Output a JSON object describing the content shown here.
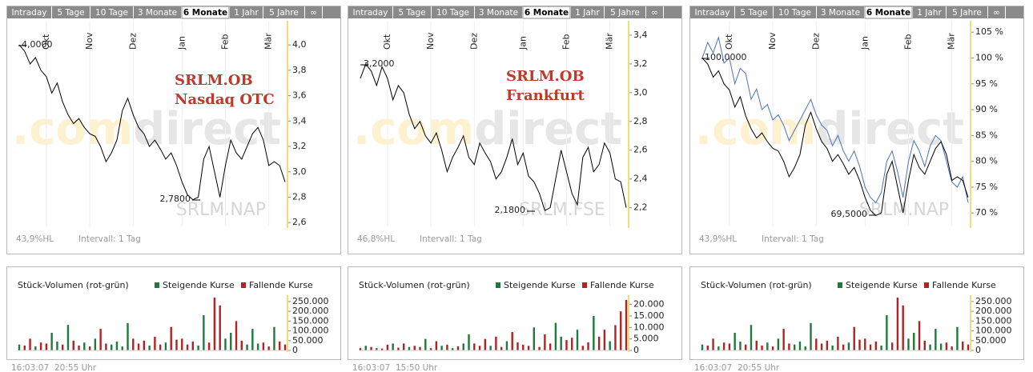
{
  "tabs": [
    "Intraday",
    "5 Tage",
    "10 Tage",
    "3 Monate",
    "6 Monate",
    "1 Jahr",
    "5 Jahre",
    "∞"
  ],
  "active_tab": "6 Monate",
  "chart_data": [
    {
      "type": "line",
      "title": "SRLM.OB",
      "subtitle": "Nasdaq OTC",
      "categories": [
        null,
        null,
        null,
        null,
        null,
        "Okt",
        null,
        null,
        null,
        null,
        null,
        null,
        null,
        "Nov",
        null,
        null,
        null,
        null,
        null,
        null,
        null,
        "Dez",
        null,
        null,
        null,
        null,
        null,
        null,
        null,
        null,
        "Jan",
        null,
        null,
        null,
        null,
        null,
        null,
        null,
        "Feb",
        null,
        null,
        null,
        null,
        null,
        null,
        null,
        "Mär",
        null,
        null,
        null
      ],
      "series": [
        {
          "color": "#000000",
          "values": [
            4.0,
            3.95,
            3.85,
            3.9,
            3.8,
            3.75,
            3.62,
            3.7,
            3.55,
            3.45,
            3.38,
            3.42,
            3.35,
            3.3,
            3.28,
            3.2,
            3.08,
            3.15,
            3.25,
            3.48,
            3.58,
            3.45,
            3.35,
            3.3,
            3.2,
            3.25,
            3.18,
            3.1,
            3.15,
            3.05,
            2.92,
            2.82,
            2.78,
            2.8,
            3.1,
            3.2,
            3.0,
            2.8,
            3.05,
            3.25,
            3.15,
            3.1,
            3.2,
            3.3,
            3.35,
            3.25,
            3.05,
            3.08,
            3.05,
            2.92
          ]
        }
      ],
      "ylim": [
        2.57,
        4.19
      ],
      "yticks": [
        {
          "value": 2.6,
          "label": "2,6"
        },
        {
          "value": 2.8,
          "label": "2,8"
        },
        {
          "value": 3.0,
          "label": "3,0"
        },
        {
          "value": 3.2,
          "label": "3,2"
        },
        {
          "value": 3.4,
          "label": "3,4"
        },
        {
          "value": 3.6,
          "label": "3,6"
        },
        {
          "value": 3.8,
          "label": "3,8"
        },
        {
          "value": 4.0,
          "label": "4,0"
        }
      ],
      "annotations": [
        "4,0000",
        "2,7800"
      ],
      "logo": [
        ".com",
        "direct"
      ],
      "watermark": "SRLM.NAP",
      "footer": [
        "43,9%HL",
        "Intervall: 1 Tag"
      ]
    },
    {
      "type": "bar",
      "title": "Stück-Volumen (rot-grün)",
      "series": [
        {
          "name": "Steigende Kurse",
          "color": "#1e7a3c",
          "values": [
            30000,
            null,
            null,
            20000,
            null,
            null,
            90000,
            45000,
            null,
            130000,
            null,
            null,
            40000,
            null,
            60000,
            null,
            null,
            30000,
            45000,
            20000,
            140000,
            null,
            null,
            null,
            25000,
            null,
            null,
            40000,
            null,
            null,
            null,
            null,
            null,
            25000,
            180000,
            null,
            null,
            null,
            60000,
            90000,
            null,
            null,
            30000,
            110000,
            35000,
            null,
            null,
            120000,
            null,
            null
          ]
        },
        {
          "name": "Fallende Kurse",
          "color": "#b22222",
          "values": [
            null,
            25000,
            60000,
            null,
            40000,
            35000,
            null,
            null,
            30000,
            null,
            50000,
            25000,
            null,
            20000,
            null,
            110000,
            35000,
            null,
            null,
            null,
            null,
            60000,
            35000,
            50000,
            null,
            70000,
            30000,
            null,
            120000,
            55000,
            60000,
            30000,
            45000,
            null,
            null,
            40000,
            270000,
            230000,
            null,
            null,
            150000,
            50000,
            null,
            null,
            null,
            40000,
            20000,
            null,
            45000,
            30000
          ]
        }
      ],
      "ylim": [
        0,
        270000
      ],
      "yticks": [
        0,
        {
          "value": 50000,
          "label": "50.000"
        },
        {
          "value": 100000,
          "label": "100.000"
        },
        {
          "value": 150000,
          "label": "150.000"
        },
        {
          "value": 200000,
          "label": "200.000"
        },
        {
          "value": 250000,
          "label": "250.000"
        }
      ],
      "footer": [
        "16:03:07",
        "20:55 Uhr"
      ]
    },
    {
      "type": "line",
      "title": "SRLM.OB",
      "subtitle": "Frankfurt",
      "categories": [
        null,
        null,
        null,
        null,
        null,
        "Okt",
        null,
        null,
        null,
        null,
        null,
        null,
        null,
        "Nov",
        null,
        null,
        null,
        null,
        null,
        null,
        null,
        "Dez",
        null,
        null,
        null,
        null,
        null,
        null,
        null,
        null,
        "Jan",
        null,
        null,
        null,
        null,
        null,
        null,
        null,
        "Feb",
        null,
        null,
        null,
        null,
        null,
        null,
        null,
        "Mär",
        null,
        null,
        null
      ],
      "series": [
        {
          "color": "#000000",
          "values": [
            3.1,
            3.2,
            3.15,
            3.05,
            3.18,
            3.1,
            2.95,
            3.05,
            3.0,
            2.85,
            2.75,
            2.8,
            2.7,
            2.65,
            2.72,
            2.6,
            2.45,
            2.55,
            2.62,
            2.7,
            2.55,
            2.5,
            2.65,
            2.58,
            2.52,
            2.4,
            2.45,
            2.55,
            2.68,
            2.5,
            2.58,
            2.42,
            2.38,
            2.3,
            2.18,
            2.2,
            2.4,
            2.6,
            2.45,
            2.3,
            2.22,
            2.55,
            2.62,
            2.45,
            2.5,
            2.65,
            2.58,
            2.4,
            2.38,
            2.2
          ]
        }
      ],
      "ylim": [
        2.07,
        3.5
      ],
      "yticks": [
        {
          "value": 2.2,
          "label": "2,2"
        },
        {
          "value": 2.4,
          "label": "2,4"
        },
        {
          "value": 2.6,
          "label": "2,6"
        },
        {
          "value": 2.8,
          "label": "2,8"
        },
        {
          "value": 3.0,
          "label": "3,0"
        },
        {
          "value": 3.2,
          "label": "3,2"
        },
        {
          "value": 3.4,
          "label": "3,4"
        }
      ],
      "annotations": [
        "3,2000",
        "2,1800"
      ],
      "logo": [
        ".com",
        "direct"
      ],
      "watermark": "SRLM.FSE",
      "footer": [
        "46,8%HL",
        "Intervall: 1 Tag"
      ]
    },
    {
      "type": "bar",
      "title": "Stück-Volumen (rot-grün)",
      "series": [
        {
          "name": "Steigende Kurse",
          "color": "#1e7a3c",
          "values": [
            null,
            2000,
            null,
            1000,
            null,
            null,
            3000,
            null,
            null,
            1500,
            null,
            null,
            5000,
            null,
            null,
            2000,
            null,
            1000,
            null,
            3000,
            7000,
            null,
            null,
            null,
            2000,
            null,
            null,
            4000,
            null,
            null,
            null,
            null,
            10000,
            null,
            null,
            null,
            12000,
            6000,
            null,
            null,
            9000,
            null,
            null,
            15000,
            null,
            null,
            4000,
            null,
            null,
            null
          ]
        },
        {
          "name": "Fallende Kurse",
          "color": "#b22222",
          "values": [
            1000,
            null,
            1500,
            null,
            800,
            2500,
            null,
            1200,
            3000,
            null,
            2000,
            1500,
            null,
            1000,
            4000,
            null,
            2500,
            null,
            1800,
            null,
            null,
            3000,
            2000,
            5000,
            null,
            6000,
            1500,
            null,
            8000,
            3500,
            2500,
            2000,
            null,
            1500,
            7000,
            3000,
            null,
            null,
            4500,
            5500,
            null,
            2000,
            3500,
            null,
            6000,
            9000,
            null,
            11000,
            17000,
            22000
          ]
        }
      ],
      "ylim": [
        0,
        23000
      ],
      "yticks": [
        0,
        {
          "value": 5000,
          "label": "5.000"
        },
        {
          "value": 10000,
          "label": "10.000"
        },
        {
          "value": 15000,
          "label": "15.000"
        },
        {
          "value": 20000,
          "label": "20.000"
        }
      ],
      "footer": [
        "16:03:07",
        "15:50 Uhr"
      ]
    },
    {
      "type": "line",
      "categories": [
        null,
        null,
        null,
        null,
        null,
        "Okt",
        null,
        null,
        null,
        null,
        null,
        null,
        null,
        "Nov",
        null,
        null,
        null,
        null,
        null,
        null,
        null,
        "Dez",
        null,
        null,
        null,
        null,
        null,
        null,
        null,
        null,
        "Jan",
        null,
        null,
        null,
        null,
        null,
        null,
        null,
        "Feb",
        null,
        null,
        null,
        null,
        null,
        null,
        null,
        "Mär",
        null,
        null,
        null
      ],
      "series": [
        {
          "color": "#4a6fc1",
          "values": [
            100,
            103,
            101,
            104,
            99,
            100,
            95,
            98,
            97,
            92,
            94,
            90,
            91,
            88,
            89,
            87,
            84,
            86,
            88,
            90,
            92,
            89,
            87,
            86,
            83,
            85,
            82,
            80,
            82,
            79,
            75,
            73,
            72,
            74,
            80,
            82,
            78,
            73,
            80,
            84,
            82,
            79,
            83,
            85,
            84,
            80,
            76,
            75,
            77,
            72
          ]
        },
        {
          "color": "#000000",
          "values": [
            100,
            98.8,
            96.3,
            97.5,
            95,
            93.8,
            90.5,
            92.5,
            88.8,
            86.3,
            84.5,
            85.5,
            83.8,
            82.5,
            82,
            80,
            77,
            78.8,
            81.3,
            87,
            89.5,
            86.3,
            83.8,
            82.5,
            80,
            81.3,
            79.5,
            77.5,
            78.8,
            76.3,
            73,
            70.5,
            69.5,
            70,
            77.5,
            80,
            75,
            70,
            76.3,
            81.3,
            78.8,
            77.5,
            80,
            82.5,
            83.8,
            81.3,
            76.3,
            77,
            76.3,
            73
          ]
        }
      ],
      "ylim": [
        67.4,
        107.2
      ],
      "yticks": [
        {
          "value": 70,
          "label": "70 %"
        },
        {
          "value": 75,
          "label": "75 %"
        },
        {
          "value": 80,
          "label": "80 %"
        },
        {
          "value": 85,
          "label": "85 %"
        },
        {
          "value": 90,
          "label": "90 %"
        },
        {
          "value": 95,
          "label": "95 %"
        },
        {
          "value": 100,
          "label": "100 %"
        },
        {
          "value": 105,
          "label": "105 %"
        }
      ],
      "annotations": [
        "100,0000",
        "69,5000"
      ],
      "logo": [
        ".com",
        "direct"
      ],
      "watermark": "SRLM.NAP",
      "footer": [
        "43,9%HL",
        "Intervall: 1 Tag"
      ]
    },
    {
      "type": "bar",
      "title": "Stück-Volumen (rot-grün)",
      "series": [
        {
          "name": "Steigende Kurse",
          "color": "#1e7a3c",
          "values": [
            30000,
            null,
            null,
            20000,
            null,
            null,
            90000,
            45000,
            null,
            130000,
            null,
            null,
            40000,
            null,
            60000,
            null,
            null,
            30000,
            45000,
            20000,
            140000,
            null,
            null,
            null,
            25000,
            null,
            null,
            40000,
            null,
            null,
            null,
            null,
            null,
            25000,
            180000,
            null,
            null,
            null,
            60000,
            90000,
            null,
            null,
            30000,
            110000,
            35000,
            null,
            null,
            120000,
            null,
            null
          ]
        },
        {
          "name": "Fallende Kurse",
          "color": "#b22222",
          "values": [
            null,
            25000,
            60000,
            null,
            40000,
            35000,
            null,
            null,
            30000,
            null,
            50000,
            25000,
            null,
            20000,
            null,
            110000,
            35000,
            null,
            null,
            null,
            null,
            60000,
            35000,
            50000,
            null,
            70000,
            30000,
            null,
            120000,
            55000,
            60000,
            30000,
            45000,
            null,
            null,
            40000,
            270000,
            230000,
            null,
            null,
            150000,
            50000,
            null,
            null,
            null,
            40000,
            20000,
            null,
            45000,
            30000
          ]
        }
      ],
      "ylim": [
        0,
        270000
      ],
      "yticks": [
        0,
        {
          "value": 50000,
          "label": "50.000"
        },
        {
          "value": 100000,
          "label": "100.000"
        },
        {
          "value": 150000,
          "label": "150.000"
        },
        {
          "value": 200000,
          "label": "200.000"
        },
        {
          "value": 250000,
          "label": "250.000"
        }
      ],
      "footer": [
        "16:03:07",
        "20:55 Uhr"
      ]
    }
  ]
}
